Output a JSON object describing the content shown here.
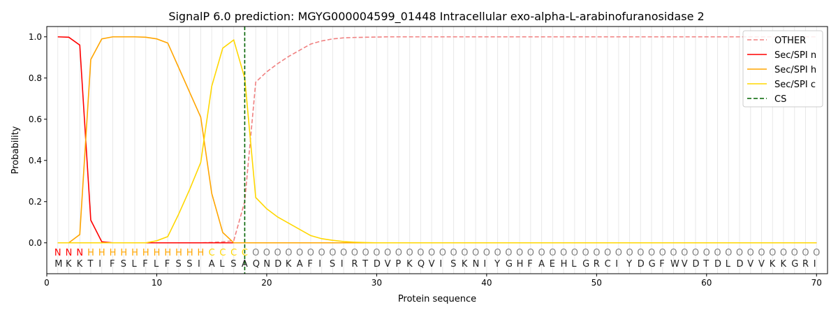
{
  "chart_data": {
    "type": "line",
    "title": "SignalP 6.0 prediction: MGYG000004599_01448 Intracellular exo-alpha-L-arabinofuranosidase 2",
    "xlabel": "Protein sequence",
    "ylabel": "Probability",
    "xlim": [
      0,
      71
    ],
    "ylim": [
      -0.15,
      1.05
    ],
    "xticks": [
      0,
      10,
      20,
      30,
      40,
      50,
      60,
      70
    ],
    "yticks": [
      0.0,
      0.2,
      0.4,
      0.6,
      0.8,
      1.0
    ],
    "ytick_labels": [
      "0.0",
      "0.2",
      "0.4",
      "0.6",
      "0.8",
      "1.0"
    ],
    "legend_position": "top-right",
    "sequence": "MKKTIFSLFLFSSIALSAQNDKAFISIRTDVPKQVISKNIYGHFAEHLGRCIYDGFWVDTDLDVVKKGRI",
    "labels": "NNNHHHHHHHHHHHCCCCOOOOOOOOOOOOOOOOOOOOOOOOOOOOOOOOOOOOOOOOOOOOOOOOOOOO",
    "label_colors": {
      "N": "#ff0000",
      "H": "#ffa500",
      "C": "#ffd700",
      "O": "#808080"
    },
    "cs_position": 18,
    "cs_label": "CS",
    "series": [
      {
        "name": "OTHER",
        "color": "#f08080",
        "dash": true,
        "values": [
          0,
          0,
          0,
          0,
          0,
          0,
          0,
          0,
          0,
          0,
          0,
          0,
          0,
          0,
          0.002,
          0.005,
          0.01,
          0.2,
          0.78,
          0.83,
          0.87,
          0.905,
          0.935,
          0.965,
          0.98,
          0.99,
          0.995,
          0.997,
          0.998,
          0.999,
          1,
          1,
          1,
          1,
          1,
          1,
          1,
          1,
          1,
          1,
          1,
          1,
          1,
          1,
          1,
          1,
          1,
          1,
          1,
          1,
          1,
          1,
          1,
          1,
          1,
          1,
          1,
          1,
          1,
          1,
          1,
          1,
          1,
          1,
          1,
          1,
          1,
          1,
          1,
          1
        ]
      },
      {
        "name": "Sec/SPI n",
        "color": "#ff0000",
        "dash": false,
        "values": [
          1.0,
          0.998,
          0.96,
          0.11,
          0.005,
          0,
          0,
          0,
          0,
          0,
          0,
          0,
          0,
          0,
          0,
          0,
          0,
          0,
          0,
          0,
          0,
          0,
          0,
          0,
          0,
          0,
          0,
          0,
          0,
          0,
          0,
          0,
          0,
          0,
          0,
          0,
          0,
          0,
          0,
          0,
          0,
          0,
          0,
          0,
          0,
          0,
          0,
          0,
          0,
          0,
          0,
          0,
          0,
          0,
          0,
          0,
          0,
          0,
          0,
          0,
          0,
          0,
          0,
          0,
          0,
          0,
          0,
          0,
          0,
          0
        ]
      },
      {
        "name": "Sec/SPI h",
        "color": "#ffa500",
        "dash": false,
        "values": [
          0,
          0,
          0.04,
          0.89,
          0.99,
          1.0,
          1.0,
          1.0,
          0.998,
          0.99,
          0.97,
          0.85,
          0.73,
          0.61,
          0.24,
          0.05,
          0.0,
          0,
          0,
          0,
          0,
          0,
          0,
          0,
          0,
          0,
          0,
          0,
          0,
          0,
          0,
          0,
          0,
          0,
          0,
          0,
          0,
          0,
          0,
          0,
          0,
          0,
          0,
          0,
          0,
          0,
          0,
          0,
          0,
          0,
          0,
          0,
          0,
          0,
          0,
          0,
          0,
          0,
          0,
          0,
          0,
          0,
          0,
          0,
          0,
          0,
          0,
          0,
          0,
          0
        ]
      },
      {
        "name": "Sec/SPI c",
        "color": "#ffd700",
        "dash": false,
        "values": [
          0,
          0,
          0,
          0,
          0,
          0,
          0,
          0,
          0,
          0.01,
          0.03,
          0.14,
          0.26,
          0.39,
          0.76,
          0.945,
          0.985,
          0.8,
          0.22,
          0.165,
          0.125,
          0.095,
          0.065,
          0.035,
          0.02,
          0.012,
          0.006,
          0.003,
          0.001,
          0,
          0,
          0,
          0,
          0,
          0,
          0,
          0,
          0,
          0,
          0,
          0,
          0,
          0,
          0,
          0,
          0,
          0,
          0,
          0,
          0,
          0,
          0,
          0,
          0,
          0,
          0,
          0,
          0,
          0,
          0,
          0,
          0,
          0,
          0,
          0,
          0,
          0,
          0,
          0,
          0
        ]
      }
    ]
  }
}
